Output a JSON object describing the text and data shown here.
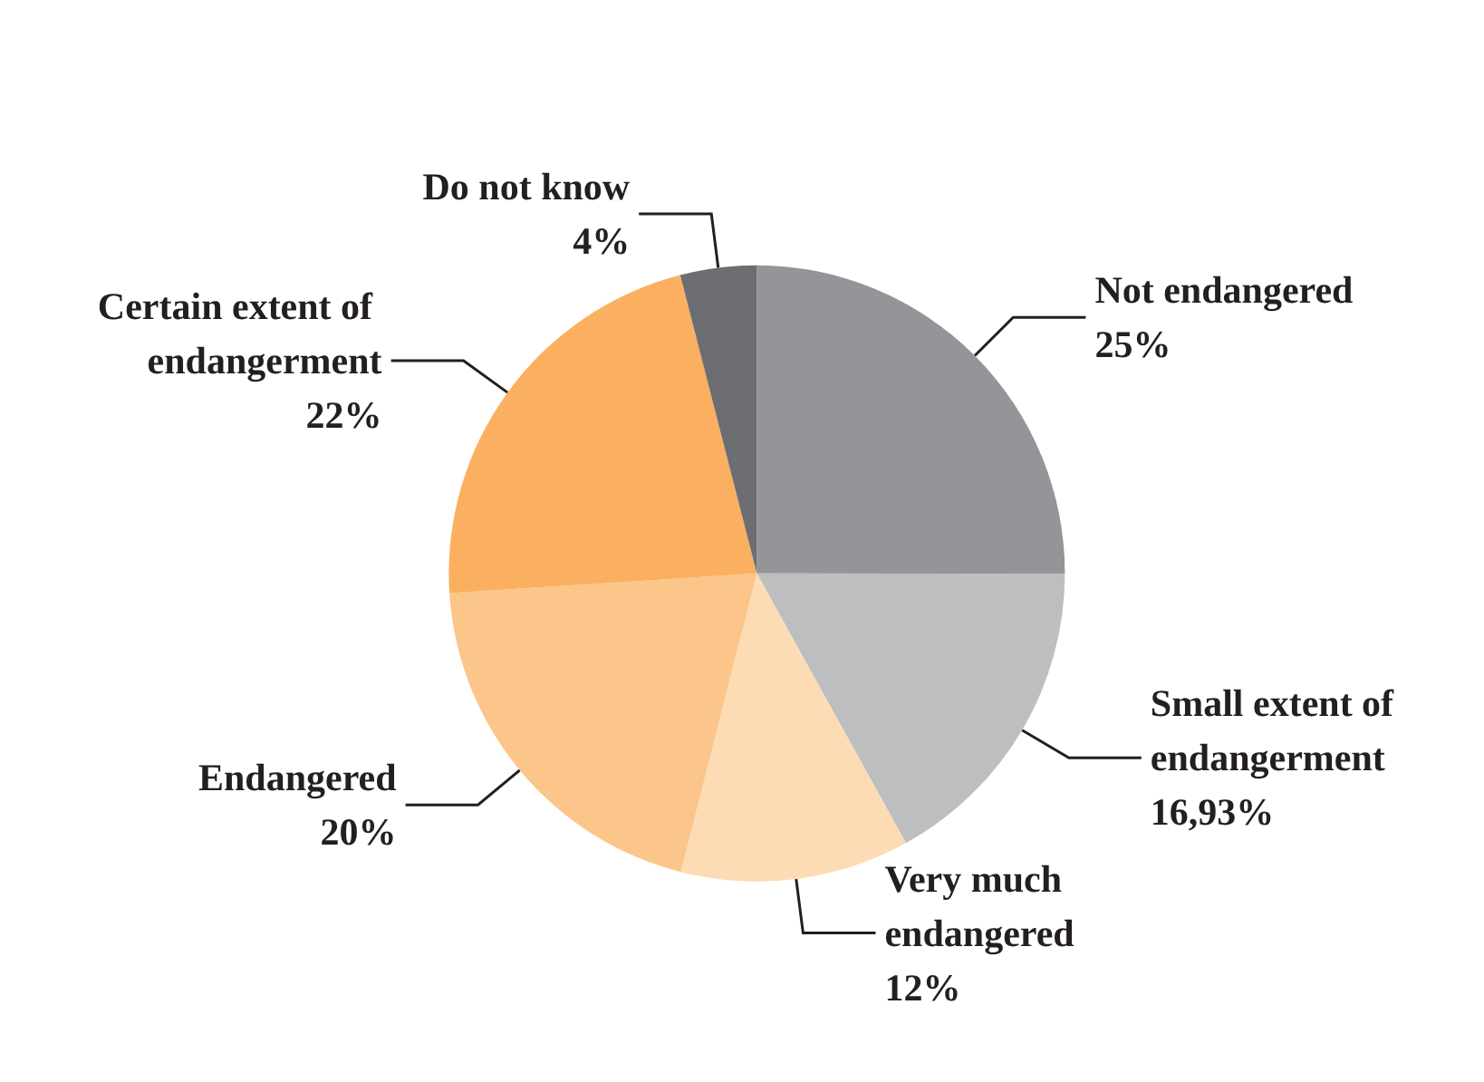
{
  "chart_data": {
    "type": "pie",
    "categories": [
      "Not endangered",
      "Small extent of endangerment",
      "Very much endangered",
      "Endangered",
      "Certain extent of endangerment",
      "Do not know"
    ],
    "values": [
      25,
      16.93,
      12,
      20,
      22,
      4
    ],
    "value_labels": [
      "25%",
      "16,93%",
      "12%",
      "20%",
      "22%",
      "4%"
    ],
    "colors": [
      "#939598",
      "#bcbec0",
      "#fddbb4",
      "#fcc589",
      "#fbb061",
      "#6d6e71"
    ],
    "legend": false
  }
}
